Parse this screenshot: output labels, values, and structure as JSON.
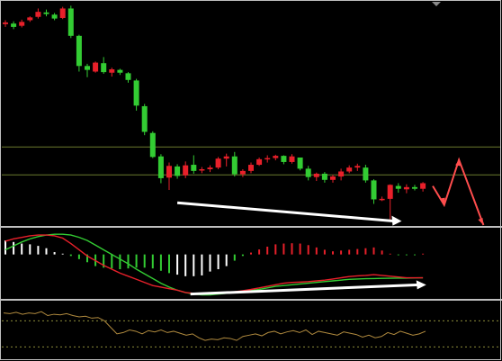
{
  "chart_data": {
    "type": "candlestick",
    "panels": [
      {
        "name": "price",
        "candles": [
          {
            "o": 42.0,
            "h": 43.4,
            "l": 41.0,
            "c": 42.6
          },
          {
            "o": 42.2,
            "h": 43.0,
            "l": 40.2,
            "c": 41.0
          },
          {
            "o": 41.4,
            "h": 43.6,
            "l": 40.8,
            "c": 42.8
          },
          {
            "o": 43.4,
            "h": 44.8,
            "l": 42.8,
            "c": 44.4
          },
          {
            "o": 44.6,
            "h": 47.6,
            "l": 44.0,
            "c": 46.4
          },
          {
            "o": 46.2,
            "h": 47.2,
            "l": 44.8,
            "c": 45.6
          },
          {
            "o": 45.4,
            "h": 46.0,
            "l": 43.4,
            "c": 44.0
          },
          {
            "o": 44.2,
            "h": 48.2,
            "l": 43.8,
            "c": 47.6
          },
          {
            "o": 47.6,
            "h": 48.6,
            "l": 37.0,
            "c": 37.8
          },
          {
            "o": 37.8,
            "h": 38.2,
            "l": 25.0,
            "c": 27.0
          },
          {
            "o": 27.0,
            "h": 27.8,
            "l": 23.0,
            "c": 25.6
          },
          {
            "o": 25.0,
            "h": 28.6,
            "l": 24.6,
            "c": 28.2
          },
          {
            "o": 28.0,
            "h": 30.2,
            "l": 24.2,
            "c": 24.8
          },
          {
            "o": 24.6,
            "h": 26.4,
            "l": 23.2,
            "c": 25.8
          },
          {
            "o": 25.6,
            "h": 26.0,
            "l": 23.8,
            "c": 24.6
          },
          {
            "o": 24.4,
            "h": 24.8,
            "l": 21.0,
            "c": 22.0
          },
          {
            "o": 21.8,
            "h": 22.4,
            "l": 11.0,
            "c": 12.8
          },
          {
            "o": 12.6,
            "h": 13.4,
            "l": 2.2,
            "c": 3.4
          },
          {
            "o": 3.0,
            "h": 3.6,
            "l": -6.0,
            "c": -5.6
          },
          {
            "o": -5.4,
            "h": -4.6,
            "l": -15.0,
            "c": -13.2
          },
          {
            "o": -13.0,
            "h": -7.6,
            "l": -17.4,
            "c": -8.8
          },
          {
            "o": -9.0,
            "h": -8.2,
            "l": -13.4,
            "c": -12.4
          },
          {
            "o": -12.2,
            "h": -7.2,
            "l": -13.2,
            "c": -8.6
          },
          {
            "o": -8.4,
            "h": -5.0,
            "l": -11.6,
            "c": -10.6
          },
          {
            "o": -10.4,
            "h": -9.2,
            "l": -11.4,
            "c": -10.0
          },
          {
            "o": -10.0,
            "h": -8.6,
            "l": -11.0,
            "c": -9.4
          },
          {
            "o": -9.4,
            "h": -5.6,
            "l": -10.0,
            "c": -6.2
          },
          {
            "o": -6.2,
            "h": -4.4,
            "l": -9.0,
            "c": -5.4
          },
          {
            "o": -5.4,
            "h": -3.8,
            "l": -12.6,
            "c": -11.8
          },
          {
            "o": -11.8,
            "h": -10.0,
            "l": -12.8,
            "c": -10.6
          },
          {
            "o": -10.6,
            "h": -7.6,
            "l": -11.4,
            "c": -8.4
          },
          {
            "o": -8.4,
            "h": -5.8,
            "l": -8.8,
            "c": -6.4
          },
          {
            "o": -6.4,
            "h": -5.0,
            "l": -7.6,
            "c": -6.0
          },
          {
            "o": -6.0,
            "h": -4.8,
            "l": -6.8,
            "c": -5.2
          },
          {
            "o": -5.2,
            "h": -5.0,
            "l": -8.2,
            "c": -7.4
          },
          {
            "o": -7.4,
            "h": -4.6,
            "l": -8.0,
            "c": -5.4
          },
          {
            "o": -5.8,
            "h": -6.2,
            "l": -10.4,
            "c": -9.8
          },
          {
            "o": -9.8,
            "h": -8.8,
            "l": -14.0,
            "c": -12.8
          },
          {
            "o": -12.8,
            "h": -11.2,
            "l": -14.2,
            "c": -11.6
          },
          {
            "o": -11.6,
            "h": -11.0,
            "l": -14.8,
            "c": -13.8
          },
          {
            "o": -13.8,
            "h": -12.0,
            "l": -14.8,
            "c": -12.6
          },
          {
            "o": -12.6,
            "h": -9.8,
            "l": -14.0,
            "c": -10.8
          },
          {
            "o": -10.8,
            "h": -8.6,
            "l": -11.4,
            "c": -9.4
          },
          {
            "o": -9.4,
            "h": -8.0,
            "l": -10.6,
            "c": -8.8
          },
          {
            "o": -9.4,
            "h": -8.4,
            "l": -14.8,
            "c": -14.0
          },
          {
            "o": -14.0,
            "h": -13.6,
            "l": -22.4,
            "c": -20.8
          },
          {
            "o": -20.6,
            "h": -19.8,
            "l": -21.4,
            "c": -20.6
          },
          {
            "o": -20.6,
            "h": -15.4,
            "l": -28.4,
            "c": -15.6
          },
          {
            "o": -16.0,
            "h": -15.0,
            "l": -18.4,
            "c": -17.0
          },
          {
            "o": -17.2,
            "h": -15.4,
            "l": -18.6,
            "c": -16.4
          },
          {
            "o": -16.4,
            "h": -15.6,
            "l": -17.6,
            "c": -17.0
          },
          {
            "o": -17.0,
            "h": -14.6,
            "l": -18.0,
            "c": -15.0
          }
        ],
        "levels": [
          -2.0,
          -12.0
        ],
        "colors": {
          "up": "#e8202a",
          "down": "#33cc33",
          "level": "#6b7a2e",
          "divergence": "#ffffff",
          "projection": "#ff4d4d"
        }
      },
      {
        "name": "oscillator",
        "histogram": [
          0.9,
          0.8,
          0.7,
          0.65,
          0.55,
          0.4,
          0.15,
          0.05,
          -0.1,
          -0.3,
          -0.5,
          -0.75,
          -0.85,
          -0.9,
          -0.95,
          -0.9,
          -0.85,
          -0.85,
          -0.9,
          -1.05,
          -1.2,
          -1.3,
          -1.4,
          -1.4,
          -1.35,
          -1.1,
          -0.95,
          -0.75,
          -0.4,
          -0.1,
          0.12,
          0.32,
          0.5,
          0.65,
          0.7,
          0.72,
          0.7,
          0.6,
          0.45,
          0.3,
          0.2,
          0.25,
          0.3,
          0.35,
          0.4,
          0.45,
          0.25,
          0.05,
          -0.05,
          -0.05,
          -0.05,
          0.05
        ],
        "fast": [
          0.85,
          1.0,
          1.1,
          1.2,
          1.25,
          1.25,
          1.2,
          1.05,
          0.7,
          0.3,
          -0.1,
          -0.4,
          -0.7,
          -0.95,
          -1.2,
          -1.4,
          -1.6,
          -1.8,
          -2.0,
          -2.1,
          -2.2,
          -2.3,
          -2.45,
          -2.5,
          -2.5,
          -2.5,
          -2.48,
          -2.45,
          -2.4,
          -2.33,
          -2.25,
          -2.15,
          -2.05,
          -1.95,
          -1.85,
          -1.8,
          -1.78,
          -1.75,
          -1.7,
          -1.65,
          -1.58,
          -1.5,
          -1.42,
          -1.38,
          -1.35,
          -1.3,
          -1.35,
          -1.4,
          -1.45,
          -1.5,
          -1.5,
          -1.5
        ],
        "slow": [
          0.3,
          0.55,
          0.8,
          1.0,
          1.15,
          1.25,
          1.3,
          1.3,
          1.25,
          1.1,
          0.9,
          0.6,
          0.3,
          0.0,
          -0.3,
          -0.6,
          -0.95,
          -1.25,
          -1.55,
          -1.85,
          -2.1,
          -2.3,
          -2.45,
          -2.55,
          -2.6,
          -2.6,
          -2.55,
          -2.5,
          -2.45,
          -2.4,
          -2.32,
          -2.25,
          -2.15,
          -2.05,
          -2.0,
          -1.95,
          -1.9,
          -1.85,
          -1.8,
          -1.75,
          -1.7,
          -1.65,
          -1.6,
          -1.58,
          -1.56,
          -1.55,
          -1.54,
          -1.53,
          -1.52,
          -1.52,
          -1.51,
          -1.5
        ],
        "colors": {
          "hist_pos": "#ffffff",
          "hist_neg": "#33cc33",
          "fast": "#e8202a",
          "slow": "#33cc33",
          "accent": "#e8202a"
        }
      },
      {
        "name": "lower",
        "values": [
          0.6,
          0.55,
          0.65,
          0.5,
          0.6,
          0.55,
          0.7,
          0.4,
          0.5,
          0.45,
          0.55,
          0.4,
          0.3,
          0.35,
          0.2,
          0.25,
          0.0,
          -0.5,
          -1.0,
          -0.9,
          -0.7,
          -0.8,
          -1.0,
          -0.75,
          -0.85,
          -0.7,
          -0.9,
          -0.8,
          -0.95,
          -1.1,
          -1.0,
          -1.3,
          -1.5,
          -1.4,
          -1.45,
          -1.3,
          -1.35,
          -1.5,
          -1.2,
          -1.1,
          -1.0,
          -1.15,
          -0.9,
          -0.8,
          -1.0,
          -0.85,
          -0.75,
          -0.9,
          -0.7,
          -1.05,
          -0.8,
          -0.9,
          -1.0,
          -1.1,
          -0.85,
          -0.95,
          -1.05,
          -1.25,
          -1.1,
          -1.3,
          -1.2,
          -0.9,
          -1.05,
          -0.8,
          -0.95,
          -1.1,
          -1.0,
          -0.8
        ],
        "levels": [
          0.0,
          -2.0
        ],
        "colors": {
          "line": "#b08a3e",
          "level": "#8a8a3a"
        }
      }
    ]
  }
}
